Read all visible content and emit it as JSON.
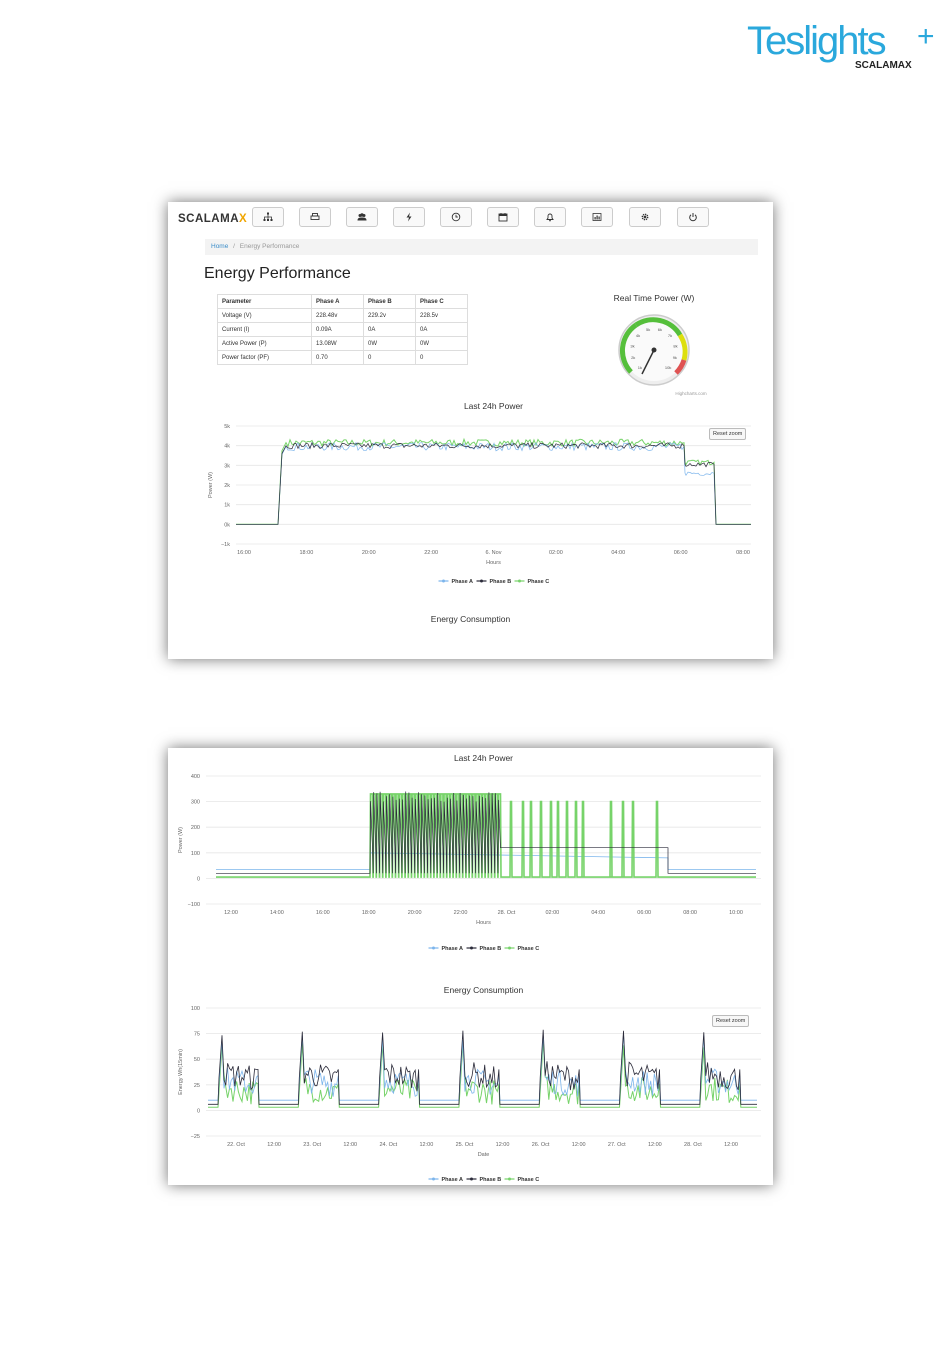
{
  "brand": {
    "name": "Teslights",
    "plus": "+",
    "sub": "SCALAMAX",
    "color": "#2aa8dc"
  },
  "shot1": {
    "nav_logo_main": "SCALAMA",
    "nav_logo_x": "X",
    "nav_icons": [
      "sitemap-icon",
      "print-icon",
      "users-icon",
      "bolt-icon",
      "clock-icon",
      "calendar-icon",
      "bell-icon",
      "bar-chart-icon",
      "gear-icon",
      "power-icon"
    ],
    "breadcrumb": {
      "home": "Home",
      "sep": "/",
      "current": "Energy Performance"
    },
    "page_title": "Energy Performance",
    "table": {
      "headers": [
        "Parameter",
        "Phase A",
        "Phase B",
        "Phase C"
      ],
      "rows": [
        [
          "Voltage (V)",
          "228.48v",
          "229.2v",
          "228.5v"
        ],
        [
          "Current (I)",
          "0.09A",
          "0A",
          "0A"
        ],
        [
          "Active Power (P)",
          "13.08W",
          "0W",
          "0W"
        ],
        [
          "Power factor (PF)",
          "0.70",
          "0",
          "0"
        ]
      ]
    },
    "gauge": {
      "title": "Real Time Power (W)",
      "credit": "Highcharts.com",
      "value": 13.08,
      "labels": [
        "1k",
        "2k",
        "3k",
        "4k",
        "5k",
        "6k",
        "7k",
        "8k",
        "9k",
        "10k"
      ]
    },
    "power_chart": {
      "title": "Last 24h Power",
      "ylabel": "Power (W)",
      "xlabel": "Hours",
      "reset_label": "Reset zoom",
      "yticks": [
        "5k",
        "4k",
        "3k",
        "2k",
        "1k",
        "0k",
        "−1k"
      ],
      "xticks": [
        "16:00",
        "18:00",
        "20:00",
        "22:00",
        "6. Nov",
        "02:00",
        "04:00",
        "06:00",
        "08:00"
      ]
    },
    "energy_title": "Energy Consumption"
  },
  "shot2": {
    "power_chart": {
      "title": "Last 24h Power",
      "ylabel": "Power (W)",
      "xlabel": "Hours",
      "yticks": [
        "400",
        "300",
        "200",
        "100",
        "0",
        "−100"
      ],
      "xticks": [
        "12:00",
        "14:00",
        "16:00",
        "18:00",
        "20:00",
        "22:00",
        "28. Oct",
        "02:00",
        "04:00",
        "06:00",
        "08:00",
        "10:00"
      ]
    },
    "energy_chart": {
      "title": "Energy Consumption",
      "ylabel": "Energy Wh(15min)",
      "xlabel": "Date",
      "reset_label": "Reset zoom",
      "yticks": [
        "100",
        "75",
        "50",
        "25",
        "0",
        "−25"
      ],
      "xticks": [
        "22. Oct",
        "12:00",
        "23. Oct",
        "12:00",
        "24. Oct",
        "12:00",
        "25. Oct",
        "12:00",
        "26. Oct",
        "12:00",
        "27. Oct",
        "12:00",
        "28. Oct",
        "12:00"
      ]
    }
  },
  "legend": {
    "a": "Phase A",
    "b": "Phase B",
    "c": "Phase C"
  },
  "colors": {
    "phase_a": "#7cb5ec",
    "phase_b": "#2b2b3a",
    "phase_c": "#77d36a"
  }
}
